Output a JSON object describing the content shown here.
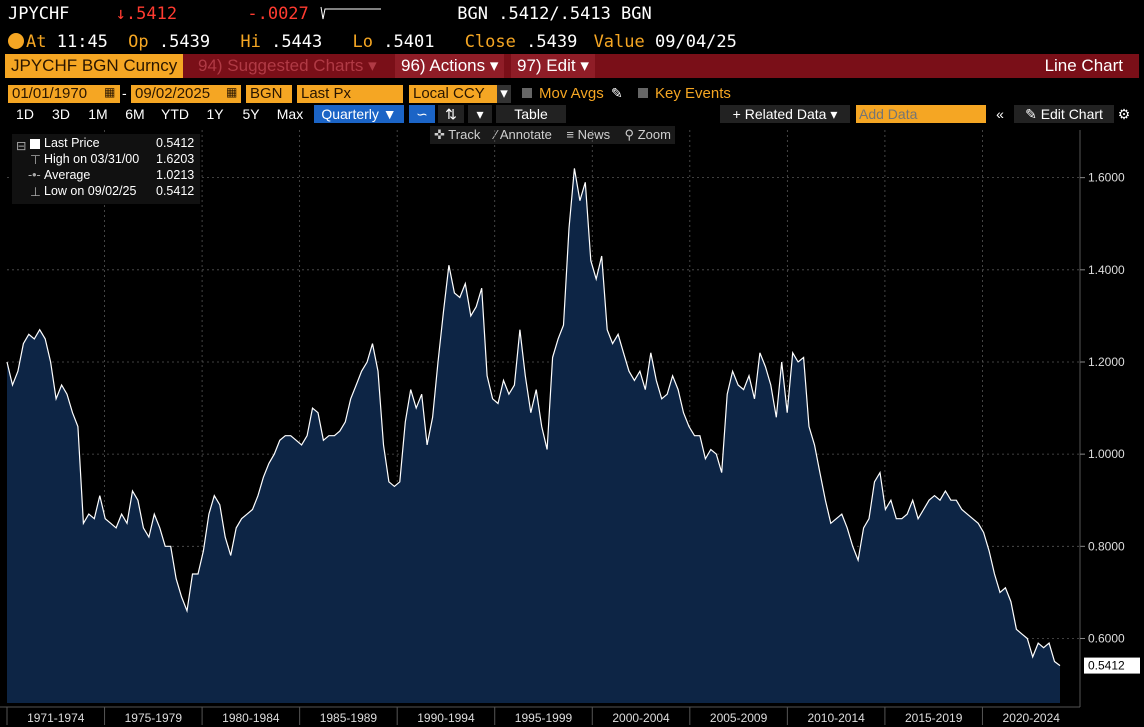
{
  "header": {
    "ticker": "JPYCHF",
    "last": ".5412",
    "change": "-.0027",
    "quote": "BGN .5412/.5413 BGN",
    "at_label": "At",
    "time": "11:45",
    "op_label": "Op",
    "op": ".5439",
    "hi_label": "Hi",
    "hi": ".5443",
    "lo_label": "Lo",
    "lo": ".5401",
    "close_label": "Close",
    "close": ".5439",
    "value_label": "Value",
    "value_date": "09/04/25"
  },
  "menubar": {
    "security": "JPYCHF BGN Curncy",
    "suggested": "94) Suggested Charts",
    "actions": "96) Actions",
    "edit": "97) Edit",
    "chart_type": "Line Chart"
  },
  "controls": {
    "start_date": "01/01/1970",
    "end_date": "09/02/2025",
    "source": "BGN",
    "field": "Last Px",
    "currency": "Local CCY",
    "mov_avgs": "Mov Avgs",
    "key_events": "Key Events",
    "periods": [
      "1D",
      "3D",
      "1M",
      "6M",
      "YTD",
      "1Y",
      "5Y",
      "Max"
    ],
    "frequency": "Quarterly",
    "table": "Table",
    "related": "+ Related Data",
    "add_data_placeholder": "Add Data",
    "edit_chart": "Edit Chart"
  },
  "tools": {
    "track": "Track",
    "annotate": "Annotate",
    "news": "News",
    "zoom": "Zoom"
  },
  "legend": {
    "last_label": "Last Price",
    "last_value": "0.5412",
    "high_label": "High on 03/31/00",
    "high_value": "1.6203",
    "avg_label": "Average",
    "avg_value": "1.0213",
    "low_label": "Low on 09/02/25",
    "low_value": "0.5412"
  },
  "colors": {
    "orange": "#f5a623",
    "red": "#ff3b30",
    "menubar": "#7a0f18",
    "area": "#0d2545",
    "line": "#ffffff"
  },
  "chart_data": {
    "type": "area",
    "series": [
      {
        "name": "Last Price",
        "x_start": 1970.0,
        "x_step": 0.25,
        "values": [
          1.2,
          1.15,
          1.18,
          1.24,
          1.26,
          1.25,
          1.27,
          1.25,
          1.2,
          1.12,
          1.15,
          1.13,
          1.09,
          1.06,
          0.85,
          0.87,
          0.86,
          0.91,
          0.86,
          0.85,
          0.84,
          0.87,
          0.85,
          0.92,
          0.9,
          0.84,
          0.82,
          0.87,
          0.84,
          0.8,
          0.8,
          0.73,
          0.69,
          0.66,
          0.74,
          0.74,
          0.79,
          0.87,
          0.91,
          0.89,
          0.82,
          0.78,
          0.84,
          0.86,
          0.87,
          0.88,
          0.91,
          0.95,
          0.98,
          1.0,
          1.03,
          1.04,
          1.04,
          1.03,
          1.02,
          1.04,
          1.1,
          1.09,
          1.03,
          1.04,
          1.04,
          1.05,
          1.07,
          1.12,
          1.15,
          1.18,
          1.2,
          1.24,
          1.18,
          1.02,
          0.94,
          0.93,
          0.94,
          1.07,
          1.14,
          1.1,
          1.13,
          1.02,
          1.08,
          1.2,
          1.31,
          1.41,
          1.35,
          1.34,
          1.37,
          1.3,
          1.32,
          1.36,
          1.17,
          1.12,
          1.11,
          1.16,
          1.13,
          1.15,
          1.27,
          1.17,
          1.09,
          1.14,
          1.06,
          1.01,
          1.21,
          1.25,
          1.28,
          1.49,
          1.62,
          1.55,
          1.59,
          1.42,
          1.38,
          1.43,
          1.27,
          1.24,
          1.26,
          1.22,
          1.18,
          1.16,
          1.18,
          1.14,
          1.22,
          1.16,
          1.12,
          1.13,
          1.17,
          1.14,
          1.09,
          1.06,
          1.04,
          1.04,
          0.99,
          1.01,
          1.0,
          0.96,
          1.13,
          1.18,
          1.15,
          1.14,
          1.17,
          1.12,
          1.22,
          1.19,
          1.15,
          1.08,
          1.2,
          1.09,
          1.22,
          1.2,
          1.21,
          1.06,
          1.02,
          0.96,
          0.9,
          0.85,
          0.86,
          0.87,
          0.84,
          0.8,
          0.77,
          0.84,
          0.86,
          0.94,
          0.96,
          0.88,
          0.9,
          0.86,
          0.86,
          0.87,
          0.9,
          0.86,
          0.88,
          0.9,
          0.91,
          0.9,
          0.92,
          0.9,
          0.9,
          0.88,
          0.87,
          0.86,
          0.85,
          0.83,
          0.79,
          0.74,
          0.7,
          0.71,
          0.68,
          0.62,
          0.61,
          0.6,
          0.56,
          0.59,
          0.58,
          0.59,
          0.55,
          0.5412
        ]
      }
    ],
    "ylim": [
      0.46,
      1.66
    ],
    "y_ticks": [
      "0.6000",
      "0.8000",
      "1.0000",
      "1.2000",
      "1.4000",
      "1.6000"
    ],
    "x_labels": [
      "1971-1974",
      "1975-1979",
      "1980-1984",
      "1985-1989",
      "1990-1994",
      "1995-1999",
      "2000-2004",
      "2005-2009",
      "2010-2014",
      "2015-2019",
      "2020-2024"
    ],
    "last_value_label": "0.5412",
    "grid": true,
    "legend": "top-left"
  }
}
